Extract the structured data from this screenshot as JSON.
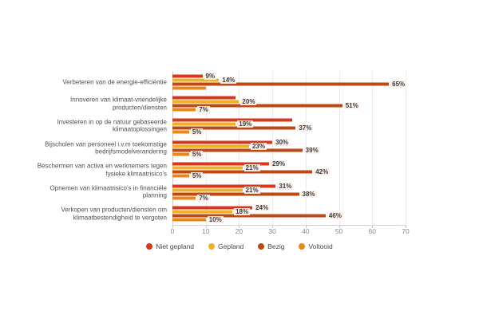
{
  "chart_data": {
    "type": "bar",
    "orientation": "horizontal",
    "title": "",
    "grid": true,
    "legend_position": "bottom",
    "xlim": [
      0,
      70
    ],
    "xticks": [
      0,
      10,
      20,
      30,
      40,
      50,
      60,
      70
    ],
    "xtick_labels": [
      "0",
      "10",
      "20",
      "30",
      "40",
      "50",
      "60",
      "70"
    ],
    "categories": [
      "Verbeteren van de energie-efficiëntie",
      "Innoveren van klimaat-vriendelijke producten/diensten",
      "Investeren in op de natuur gebaseerde klimaatoplossingen",
      "Bijscholen van personeel i.v.m toekomstige bedrijfsmodelverandering",
      "Beschermen van activa en werknemers tegen fysieke klimaatrisico's",
      "Opnemen van klimaatrisico's in financiële planning",
      "Verkopen van producten/diensten om klimaatbestendigheid te vergoten"
    ],
    "series": [
      {
        "name": "Niet gepland",
        "color": "#d5381f",
        "values": [
          9,
          19,
          36,
          30,
          29,
          31,
          24
        ],
        "labels": [
          "9%",
          null,
          null,
          "30%",
          "29%",
          "31%",
          "24%"
        ]
      },
      {
        "name": "Gepland",
        "color": "#f0b028",
        "values": [
          14,
          20,
          19,
          23,
          21,
          21,
          18
        ],
        "labels": [
          "14%",
          "20%",
          "19%",
          "23%",
          "21%",
          "21%",
          "18%"
        ]
      },
      {
        "name": "Bezig",
        "color": "#bd4a14",
        "values": [
          65,
          51,
          37,
          39,
          42,
          38,
          46
        ],
        "labels": [
          "65%",
          "51%",
          "37%",
          "39%",
          "42%",
          "38%",
          "46%"
        ]
      },
      {
        "name": "Voltooid",
        "color": "#e8871c",
        "values": [
          10,
          7,
          5,
          5,
          5,
          7,
          10
        ],
        "labels": [
          null,
          "7%",
          "5%",
          "5%",
          "5%",
          "7%",
          "10%"
        ]
      }
    ]
  }
}
